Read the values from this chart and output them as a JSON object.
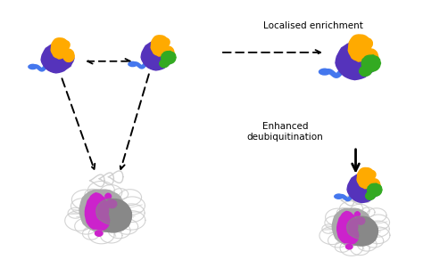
{
  "background_color": "#ffffff",
  "text_localised": "Localised enrichment",
  "text_enhanced": "Enhanced\ndeubiquitination",
  "colors": {
    "purple": "#5533bb",
    "orange": "#ffaa00",
    "green": "#33aa22",
    "blue": "#4477ee",
    "magenta": "#cc22cc",
    "gray_dark": "#888888",
    "gray_mid": "#aaaaaa",
    "gray_light": "#cccccc",
    "black": "#000000"
  },
  "figsize": [
    4.74,
    3.1
  ],
  "dpi": 100
}
